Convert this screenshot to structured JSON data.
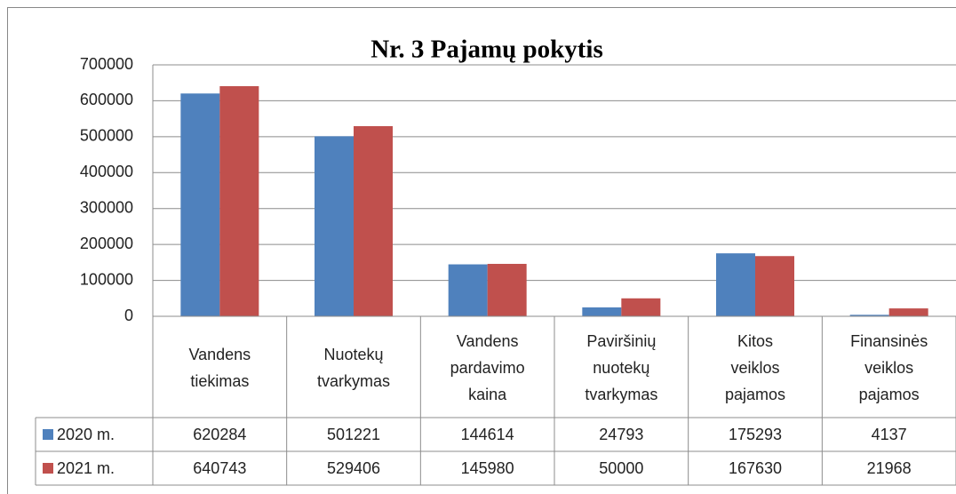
{
  "chart_data": {
    "type": "bar",
    "title": "Nr. 3 Pajamų pokytis",
    "categories": [
      "Vandens tiekimas",
      "Nuotekų tvarkymas",
      "Vandens pardavimo kaina",
      "Paviršinių nuotekų tvarkymas",
      "Kitos veiklos pajamos",
      "Finansinės veiklos pajamos"
    ],
    "series": [
      {
        "name": "2020 m.",
        "color": "#4f81bd",
        "values": [
          620284,
          501221,
          144614,
          24793,
          175293,
          4137
        ]
      },
      {
        "name": "2021 m.",
        "color": "#c0504d",
        "values": [
          640743,
          529406,
          145980,
          50000,
          167630,
          21968
        ]
      }
    ],
    "ylim": [
      0,
      700000
    ],
    "yticks": [
      0,
      100000,
      200000,
      300000,
      400000,
      500000,
      600000,
      700000
    ],
    "grid": true
  }
}
